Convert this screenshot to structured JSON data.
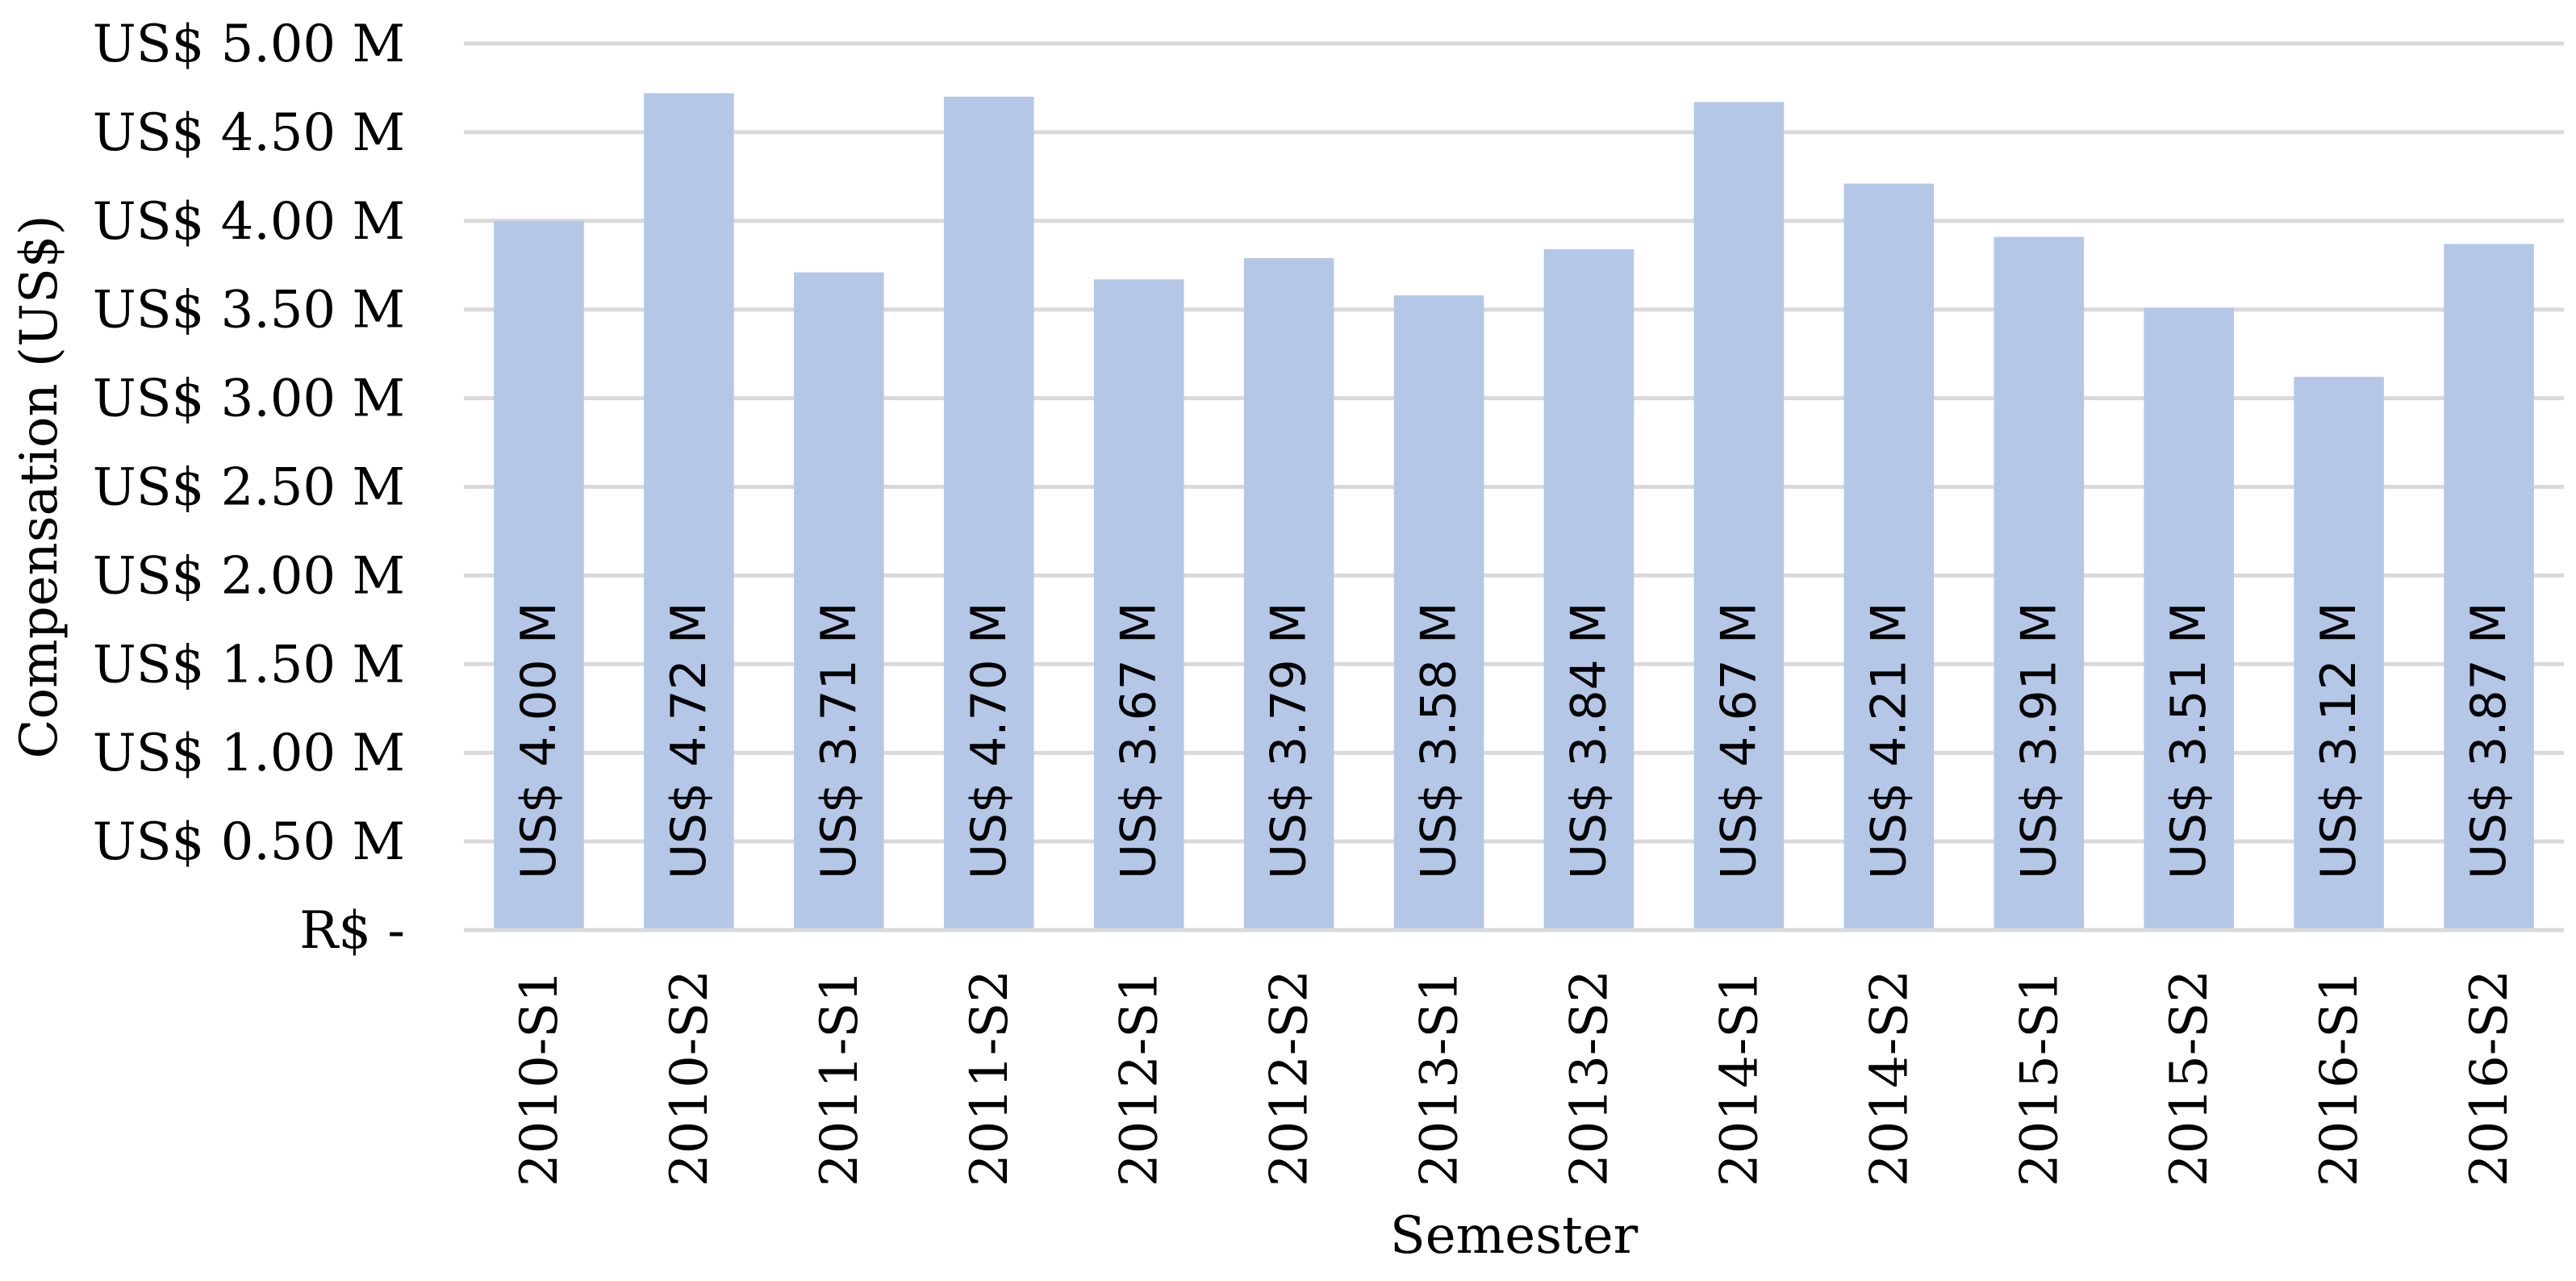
{
  "chart_data": {
    "type": "bar",
    "xlabel": "Semester",
    "ylabel": "Compensation (US$)",
    "ylim": [
      0,
      5
    ],
    "y_ticks": [
      {
        "value": 0,
        "label": "R$ -"
      },
      {
        "value": 0.5,
        "label": "US$ 0.50 M"
      },
      {
        "value": 1,
        "label": "US$ 1.00 M"
      },
      {
        "value": 1.5,
        "label": "US$ 1.50 M"
      },
      {
        "value": 2,
        "label": "US$ 2.00 M"
      },
      {
        "value": 2.5,
        "label": "US$ 2.50 M"
      },
      {
        "value": 3,
        "label": "US$ 3.00 M"
      },
      {
        "value": 3.5,
        "label": "US$ 3.50 M"
      },
      {
        "value": 4,
        "label": "US$ 4.00 M"
      },
      {
        "value": 4.5,
        "label": "US$ 4.50 M"
      },
      {
        "value": 5,
        "label": "US$ 5.00 M"
      }
    ],
    "grid": true,
    "bar_color": "#b4c7e7",
    "categories": [
      "2010-S1",
      "2010-S2",
      "2011-S1",
      "2011-S2",
      "2012-S1",
      "2012-S2",
      "2013-S1",
      "2013-S2",
      "2014-S1",
      "2014-S2",
      "2015-S1",
      "2015-S2",
      "2016-S1",
      "2016-S2"
    ],
    "values": [
      4.0,
      4.72,
      3.71,
      4.7,
      3.67,
      3.79,
      3.58,
      3.84,
      4.67,
      4.21,
      3.91,
      3.51,
      3.12,
      3.87
    ],
    "data_labels": [
      "US$ 4.00 M",
      "US$ 4.72 M",
      "US$ 3.71 M",
      "US$ 4.70 M",
      "US$ 3.67 M",
      "US$ 3.79 M",
      "US$ 3.58 M",
      "US$ 3.84 M",
      "US$ 4.67 M",
      "US$ 4.21 M",
      "US$ 3.91 M",
      "US$ 3.51 M",
      "US$ 3.12 M",
      "US$ 3.87 M"
    ]
  }
}
